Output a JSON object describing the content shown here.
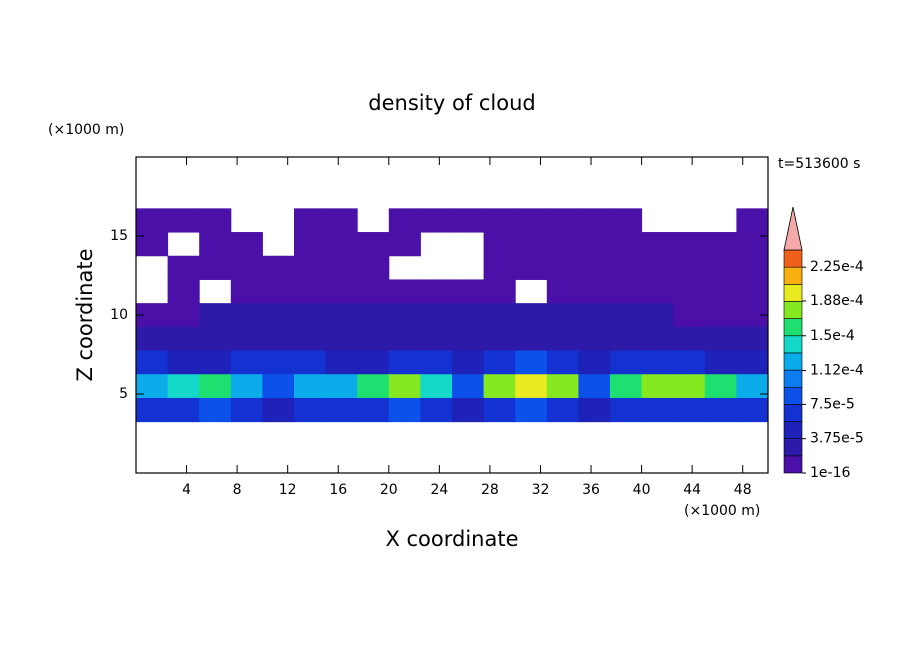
{
  "chart_data": {
    "type": "contour",
    "title": "density of cloud",
    "x_unit_label": "(×1000 m)",
    "y_unit_label": "(×1000 m)",
    "time_label": "t=513600 s",
    "xlabel": "X coordinate",
    "ylabel": "Z coordinate",
    "xlim": [
      0,
      50
    ],
    "xticks": [
      4,
      8,
      12,
      16,
      20,
      24,
      28,
      32,
      36,
      40,
      44,
      48
    ],
    "ylim": [
      0,
      20
    ],
    "yticks": [
      5,
      10,
      15
    ],
    "x": [
      1.25,
      3.75,
      6.25,
      8.75,
      11.25,
      13.75,
      16.25,
      18.75,
      21.25,
      23.75,
      26.25,
      28.75,
      31.25,
      33.75,
      36.25,
      38.75,
      41.25,
      43.75,
      46.25,
      48.75
    ],
    "y": [
      16,
      14.5,
      13,
      11.5,
      10,
      8.5,
      7,
      5.5,
      4
    ],
    "z": [
      [
        5e-06,
        5e-06,
        5e-06,
        null,
        null,
        5e-06,
        5e-06,
        null,
        5e-06,
        5e-06,
        5e-06,
        5e-06,
        5e-06,
        5e-06,
        5e-06,
        5e-06,
        null,
        null,
        null,
        5e-06
      ],
      [
        5e-06,
        null,
        5e-06,
        5e-06,
        null,
        5e-06,
        5e-06,
        5e-06,
        5e-06,
        null,
        null,
        5e-06,
        5e-06,
        5e-06,
        5e-06,
        5e-06,
        5e-06,
        5e-06,
        5e-06,
        5e-06
      ],
      [
        null,
        5e-06,
        5e-06,
        5e-06,
        5e-06,
        5e-06,
        5e-06,
        5e-06,
        null,
        null,
        null,
        5e-06,
        5e-06,
        5e-06,
        5e-06,
        5e-06,
        5e-06,
        5e-06,
        5e-06,
        5e-06
      ],
      [
        null,
        5e-06,
        null,
        5e-06,
        5e-06,
        5e-06,
        5e-06,
        5e-06,
        5e-06,
        5e-06,
        5e-06,
        5e-06,
        null,
        5e-06,
        5e-06,
        5e-06,
        5e-06,
        5e-06,
        5e-06,
        5e-06
      ],
      [
        5e-06,
        5e-06,
        2e-05,
        2e-05,
        2e-05,
        2e-05,
        2e-05,
        2e-05,
        2e-05,
        2e-05,
        2e-05,
        2e-05,
        2e-05,
        2e-05,
        2e-05,
        2e-05,
        2e-05,
        5e-06,
        5e-06,
        5e-06
      ],
      [
        2e-05,
        2.5e-05,
        3e-05,
        3e-05,
        2.5e-05,
        2.5e-05,
        3e-05,
        3e-05,
        3e-05,
        3e-05,
        3e-05,
        3e-05,
        3e-05,
        3e-05,
        3e-05,
        3e-05,
        3e-05,
        3e-05,
        3e-05,
        3e-05
      ],
      [
        6e-05,
        5e-05,
        4e-05,
        6e-05,
        7e-05,
        6e-05,
        5e-05,
        4e-05,
        6e-05,
        6e-05,
        5e-05,
        7e-05,
        8e-05,
        6e-05,
        4e-05,
        6e-05,
        7e-05,
        6e-05,
        5e-05,
        4e-05
      ],
      [
        0.00012,
        0.00014,
        0.00015,
        0.00013,
        8e-05,
        0.00012,
        0.00013,
        0.00015,
        0.00017,
        0.00014,
        9e-05,
        0.00017,
        0.00019,
        0.00018,
        8e-05,
        0.00015,
        0.00017,
        0.00018,
        0.00016,
        0.00013
      ],
      [
        6e-05,
        7e-05,
        8e-05,
        7e-05,
        4e-05,
        6e-05,
        6e-05,
        7e-05,
        8e-05,
        6e-05,
        4e-05,
        7e-05,
        8e-05,
        7e-05,
        4e-05,
        6e-05,
        7e-05,
        7e-05,
        6e-05,
        6e-05
      ]
    ],
    "levels": [
      1e-16,
      1.875e-05,
      3.75e-05,
      5.625e-05,
      7.5e-05,
      9.375e-05,
      0.0001125,
      0.00013125,
      0.00015,
      0.00016875,
      0.0001875,
      0.00020625,
      0.000225,
      0.00024375
    ],
    "colors": [
      "#4a10a8",
      "#2e1aa8",
      "#1e22b8",
      "#1432d2",
      "#0c52ea",
      "#0c7cf2",
      "#0cacea",
      "#14d8c8",
      "#1ee070",
      "#86e820",
      "#eaea20",
      "#f8b010",
      "#f06018"
    ],
    "extend_color": "#f4a8a8",
    "colorbar_ticks": [
      {
        "value": 1e-16,
        "label": "1e-16"
      },
      {
        "value": 3.75e-05,
        "label": "3.75e-5"
      },
      {
        "value": 7.5e-05,
        "label": "7.5e-5"
      },
      {
        "value": 0.000112,
        "label": "1.12e-4"
      },
      {
        "value": 0.00015,
        "label": "1.5e-4"
      },
      {
        "value": 0.000188,
        "label": "1.88e-4"
      },
      {
        "value": 0.000225,
        "label": "2.25e-4"
      }
    ]
  }
}
